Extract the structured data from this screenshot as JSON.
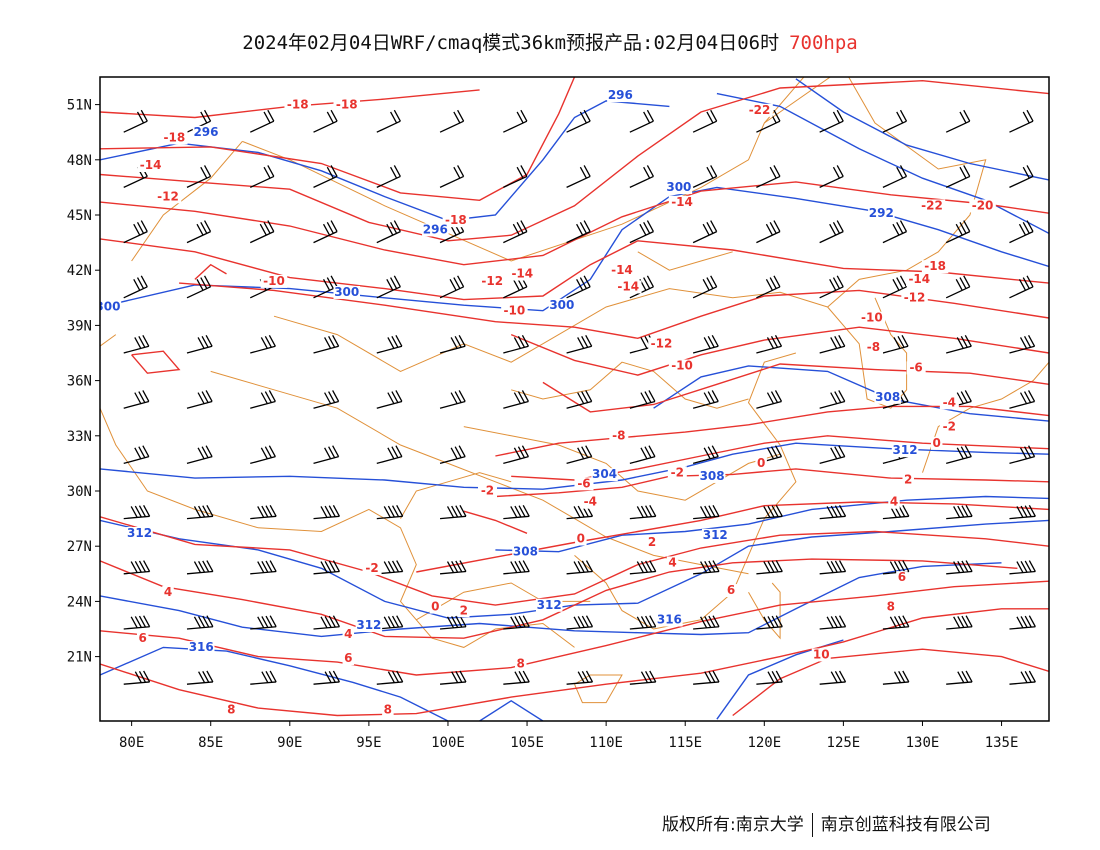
{
  "title": {
    "main": "2024年02月04日WRF/cmaq模式36km预报产品:02月04日06时",
    "level": "700hpa"
  },
  "footer": {
    "copyright": "版权所有:南京大学",
    "company": "南京创蓝科技有限公司"
  },
  "map": {
    "lon_range": [
      78,
      138
    ],
    "lat_range": [
      17.5,
      52.5
    ],
    "lon_ticks": [
      80,
      85,
      90,
      95,
      100,
      105,
      110,
      115,
      120,
      125,
      130,
      135
    ],
    "lon_tick_labels": [
      "80E",
      "85E",
      "90E",
      "95E",
      "100E",
      "105E",
      "110E",
      "115E",
      "120E",
      "125E",
      "130E",
      "135E"
    ],
    "lat_ticks": [
      21,
      24,
      27,
      30,
      33,
      36,
      39,
      42,
      45,
      48,
      51
    ],
    "lat_tick_labels": [
      "21N",
      "24N",
      "27N",
      "30N",
      "33N",
      "36N",
      "39N",
      "42N",
      "45N",
      "48N",
      "51N"
    ],
    "colors": {
      "temperature": "#e8332e",
      "height": "#2650d8",
      "border": "#e0913a",
      "barb": "#000000",
      "level": "#e8332e"
    },
    "temperature_labels": [
      {
        "text": "-18",
        "lon": 90.5,
        "lat": 50.8
      },
      {
        "text": "-18",
        "lon": 82.7,
        "lat": 49.0
      },
      {
        "text": "-18",
        "lon": 93.6,
        "lat": 50.8
      },
      {
        "text": "-14",
        "lon": 81.2,
        "lat": 47.5
      },
      {
        "text": "-12",
        "lon": 82.3,
        "lat": 45.8
      },
      {
        "text": "-18",
        "lon": 100.5,
        "lat": 44.5
      },
      {
        "text": "-10",
        "lon": 89.0,
        "lat": 41.2
      },
      {
        "text": "-12",
        "lon": 102.8,
        "lat": 41.2
      },
      {
        "text": "-14",
        "lon": 104.7,
        "lat": 41.6
      },
      {
        "text": "-10",
        "lon": 104.2,
        "lat": 39.6
      },
      {
        "text": "-14",
        "lon": 114.8,
        "lat": 45.5
      },
      {
        "text": "-14",
        "lon": 111.0,
        "lat": 41.8
      },
      {
        "text": "-14",
        "lon": 111.4,
        "lat": 40.9
      },
      {
        "text": "-12",
        "lon": 113.5,
        "lat": 37.8
      },
      {
        "text": "-10",
        "lon": 114.8,
        "lat": 36.6
      },
      {
        "text": "-8",
        "lon": 110.8,
        "lat": 32.8
      },
      {
        "text": "-22",
        "lon": 119.7,
        "lat": 50.5
      },
      {
        "text": "-22",
        "lon": 130.6,
        "lat": 45.3
      },
      {
        "text": "-20",
        "lon": 133.8,
        "lat": 45.3
      },
      {
        "text": "-18",
        "lon": 130.8,
        "lat": 42.0
      },
      {
        "text": "-14",
        "lon": 129.8,
        "lat": 41.3
      },
      {
        "text": "-12",
        "lon": 129.5,
        "lat": 40.3
      },
      {
        "text": "-10",
        "lon": 126.8,
        "lat": 39.2
      },
      {
        "text": "-8",
        "lon": 126.9,
        "lat": 37.6
      },
      {
        "text": "-6",
        "lon": 129.6,
        "lat": 36.5
      },
      {
        "text": "-4",
        "lon": 131.7,
        "lat": 34.6
      },
      {
        "text": "-2",
        "lon": 131.7,
        "lat": 33.3
      },
      {
        "text": "0",
        "lon": 130.9,
        "lat": 32.4
      },
      {
        "text": "0",
        "lon": 119.8,
        "lat": 31.3
      },
      {
        "text": "-2",
        "lon": 114.5,
        "lat": 30.8
      },
      {
        "text": "-6",
        "lon": 108.6,
        "lat": 30.2
      },
      {
        "text": "-4",
        "lon": 109.0,
        "lat": 29.2
      },
      {
        "text": "-2",
        "lon": 102.5,
        "lat": 29.8
      },
      {
        "text": "0",
        "lon": 108.4,
        "lat": 27.2
      },
      {
        "text": "-2",
        "lon": 95.2,
        "lat": 25.6
      },
      {
        "text": "0",
        "lon": 99.2,
        "lat": 23.5
      },
      {
        "text": "2",
        "lon": 101.0,
        "lat": 23.3
      },
      {
        "text": "2",
        "lon": 112.9,
        "lat": 27.0
      },
      {
        "text": "4",
        "lon": 114.2,
        "lat": 25.9
      },
      {
        "text": "6",
        "lon": 117.9,
        "lat": 24.4
      },
      {
        "text": "2",
        "lon": 129.1,
        "lat": 30.4
      },
      {
        "text": "4",
        "lon": 128.2,
        "lat": 29.2
      },
      {
        "text": "4",
        "lon": 82.3,
        "lat": 24.3
      },
      {
        "text": "6",
        "lon": 80.7,
        "lat": 21.8
      },
      {
        "text": "4",
        "lon": 93.7,
        "lat": 22.0
      },
      {
        "text": "6",
        "lon": 93.7,
        "lat": 20.7
      },
      {
        "text": "8",
        "lon": 86.3,
        "lat": 17.9
      },
      {
        "text": "8",
        "lon": 96.2,
        "lat": 17.9
      },
      {
        "text": "8",
        "lon": 104.6,
        "lat": 20.4
      },
      {
        "text": "6",
        "lon": 128.7,
        "lat": 25.1
      },
      {
        "text": "8",
        "lon": 128.0,
        "lat": 23.5
      },
      {
        "text": "10",
        "lon": 123.6,
        "lat": 20.9
      }
    ],
    "height_labels": [
      {
        "text": "296",
        "lon": 84.7,
        "lat": 49.3
      },
      {
        "text": "296",
        "lon": 110.9,
        "lat": 51.3
      },
      {
        "text": "296",
        "lon": 99.2,
        "lat": 44.0
      },
      {
        "text": "300",
        "lon": 93.6,
        "lat": 40.6
      },
      {
        "text": "300",
        "lon": 107.2,
        "lat": 39.9
      },
      {
        "text": "300",
        "lon": 78.5,
        "lat": 39.8
      },
      {
        "text": "300",
        "lon": 114.6,
        "lat": 46.3
      },
      {
        "text": "292",
        "lon": 127.4,
        "lat": 44.9
      },
      {
        "text": "308",
        "lon": 127.8,
        "lat": 34.9
      },
      {
        "text": "312",
        "lon": 128.9,
        "lat": 32.0
      },
      {
        "text": "304",
        "lon": 109.9,
        "lat": 30.7
      },
      {
        "text": "308",
        "lon": 116.7,
        "lat": 30.6
      },
      {
        "text": "312",
        "lon": 80.5,
        "lat": 27.5
      },
      {
        "text": "312",
        "lon": 116.9,
        "lat": 27.4
      },
      {
        "text": "308",
        "lon": 104.9,
        "lat": 26.5
      },
      {
        "text": "312",
        "lon": 106.4,
        "lat": 23.6
      },
      {
        "text": "316",
        "lon": 114.0,
        "lat": 22.8
      },
      {
        "text": "312",
        "lon": 95.0,
        "lat": 22.5
      },
      {
        "text": "316",
        "lon": 84.4,
        "lat": 21.3
      }
    ]
  }
}
